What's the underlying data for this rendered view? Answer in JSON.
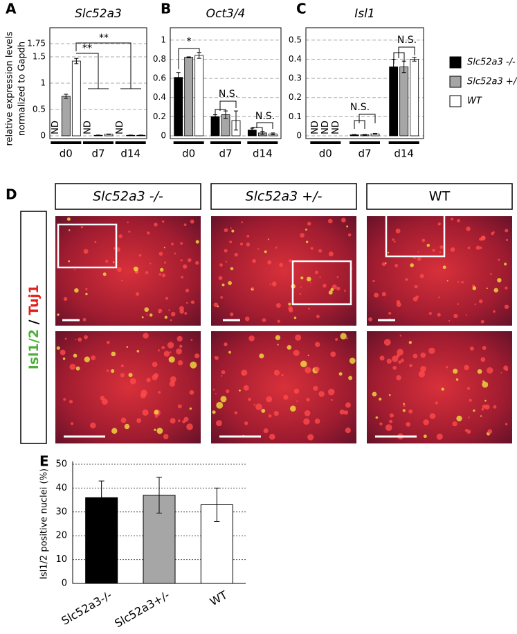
{
  "chart_data": [
    {
      "type": "grouped_bar",
      "panel_label": "A",
      "title": "Slc52a3",
      "ylabel": [
        "relative expression levels",
        "normalized to Gapdh"
      ],
      "categories": [
        "d0",
        "d7",
        "d14"
      ],
      "series": [
        {
          "name": "Slc52a3 -/-",
          "color": "#000000",
          "values": [
            null,
            null,
            null
          ],
          "errors": [
            null,
            null,
            null
          ],
          "value_labels": [
            "ND",
            "ND",
            "ND"
          ]
        },
        {
          "name": "Slc52a3 +/-",
          "color": "#a6a6a6",
          "values": [
            0.75,
            0.01,
            0.01
          ],
          "errors": [
            0.04,
            0.005,
            0.005
          ]
        },
        {
          "name": "WT",
          "color": "#ffffff",
          "values": [
            1.42,
            0.03,
            0.01
          ],
          "errors": [
            0.05,
            0.005,
            0.005
          ]
        }
      ],
      "ylim": [
        0,
        2
      ],
      "yticks": [
        0,
        0.5,
        1,
        1.5,
        1.75
      ],
      "grid": true,
      "annotations": [
        "**",
        "**"
      ]
    },
    {
      "type": "grouped_bar",
      "panel_label": "B",
      "title": "Oct3/4",
      "categories": [
        "d0",
        "d7",
        "d14"
      ],
      "series": [
        {
          "color": "#000000",
          "values": [
            0.61,
            0.2,
            0.06
          ],
          "errors": [
            0.05,
            0.02,
            0.02
          ]
        },
        {
          "color": "#a6a6a6",
          "values": [
            0.82,
            0.22,
            0.03
          ],
          "errors": [
            0.005,
            0.04,
            0.015
          ]
        },
        {
          "color": "#ffffff",
          "values": [
            0.84,
            0.16,
            0.02
          ],
          "errors": [
            0.03,
            0.1,
            0.01
          ]
        }
      ],
      "ylim": [
        0,
        1.1
      ],
      "yticks": [
        0,
        0.2,
        0.4,
        0.6,
        0.8,
        1
      ],
      "grid": true,
      "annotations": [
        "*",
        "N.S.",
        "N.S."
      ]
    },
    {
      "type": "grouped_bar",
      "panel_label": "C",
      "title": "Isl1",
      "categories": [
        "d0",
        "d7",
        "d14"
      ],
      "series": [
        {
          "color": "#000000",
          "values": [
            null,
            0.005,
            0.36
          ],
          "errors": [
            null,
            0.002,
            0.04
          ],
          "value_labels": [
            "ND",
            null,
            null
          ]
        },
        {
          "color": "#a6a6a6",
          "values": [
            null,
            0.005,
            0.36
          ],
          "errors": [
            null,
            0.002,
            0.03
          ],
          "value_labels": [
            "ND",
            null,
            null
          ]
        },
        {
          "color": "#ffffff",
          "values": [
            null,
            0.01,
            0.4
          ],
          "errors": [
            null,
            0.002,
            0.01
          ],
          "value_labels": [
            "ND",
            null,
            null
          ]
        }
      ],
      "ylim": [
        0,
        0.55
      ],
      "yticks": [
        0,
        0.1,
        0.2,
        0.3,
        0.4,
        0.5
      ],
      "grid": true,
      "annotations": [
        "N.S.",
        "N.S."
      ]
    },
    {
      "type": "bar",
      "panel_label": "E",
      "ylabel": "Isl1/2 positive nuclei (%)",
      "categories": [
        "Slc52a3-/-",
        "Slc52a3+/-",
        "WT"
      ],
      "values": [
        36,
        37,
        33
      ],
      "errors": [
        7,
        7.5,
        7
      ],
      "colors": [
        "#000000",
        "#a6a6a6",
        "#ffffff"
      ],
      "ylim": [
        0,
        50
      ],
      "yticks": [
        0,
        10,
        20,
        30,
        40,
        50
      ],
      "grid": true
    }
  ],
  "panel_d": {
    "panel_label": "D",
    "columns": [
      "Slc52a3 -/-",
      "Slc52a3 +/-",
      "WT"
    ],
    "row_label": [
      "Isl1/2",
      " / ",
      "Tuj1"
    ]
  }
}
